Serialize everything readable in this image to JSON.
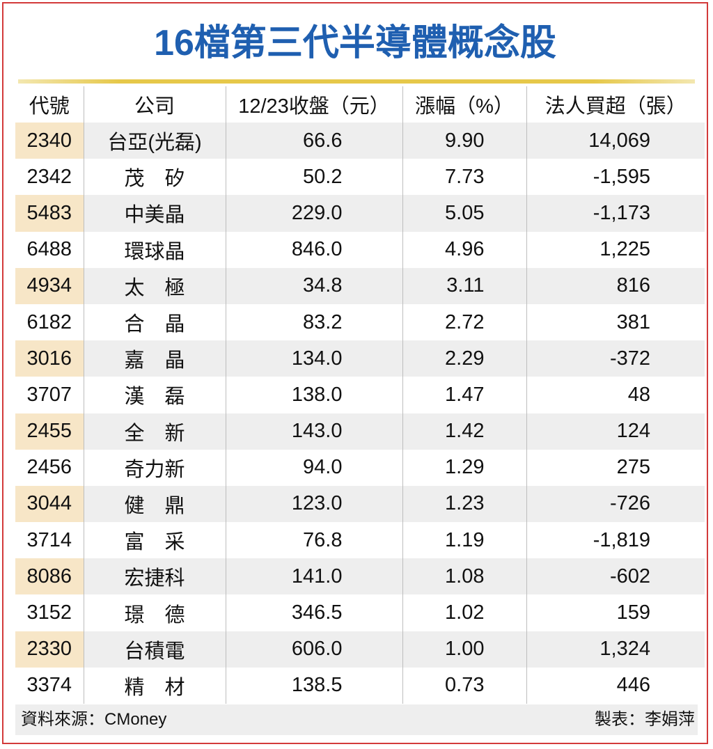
{
  "title": "16檔第三代半導體概念股",
  "headers": [
    "代號",
    "公司",
    "12/23收盤（元）",
    "漲幅（%）",
    "法人買超（張）"
  ],
  "rows": [
    {
      "code": "2340",
      "name": "台亞(光磊)",
      "close": "66.6",
      "change": "9.90",
      "net_buy": "14,069"
    },
    {
      "code": "2342",
      "name": "茂　矽",
      "close": "50.2",
      "change": "7.73",
      "net_buy": "-1,595"
    },
    {
      "code": "5483",
      "name": "中美晶",
      "close": "229.0",
      "change": "5.05",
      "net_buy": "-1,173"
    },
    {
      "code": "6488",
      "name": "環球晶",
      "close": "846.0",
      "change": "4.96",
      "net_buy": "1,225"
    },
    {
      "code": "4934",
      "name": "太　極",
      "close": "34.8",
      "change": "3.11",
      "net_buy": "816"
    },
    {
      "code": "6182",
      "name": "合　晶",
      "close": "83.2",
      "change": "2.72",
      "net_buy": "381"
    },
    {
      "code": "3016",
      "name": "嘉　晶",
      "close": "134.0",
      "change": "2.29",
      "net_buy": "-372"
    },
    {
      "code": "3707",
      "name": "漢　磊",
      "close": "138.0",
      "change": "1.47",
      "net_buy": "48"
    },
    {
      "code": "2455",
      "name": "全　新",
      "close": "143.0",
      "change": "1.42",
      "net_buy": "124"
    },
    {
      "code": "2456",
      "name": "奇力新",
      "close": "94.0",
      "change": "1.29",
      "net_buy": "275"
    },
    {
      "code": "3044",
      "name": "健　鼎",
      "close": "123.0",
      "change": "1.23",
      "net_buy": "-726"
    },
    {
      "code": "3714",
      "name": "富　采",
      "close": "76.8",
      "change": "1.19",
      "net_buy": "-1,819"
    },
    {
      "code": "8086",
      "name": "宏捷科",
      "close": "141.0",
      "change": "1.08",
      "net_buy": "-602"
    },
    {
      "code": "3152",
      "name": "璟　德",
      "close": "346.5",
      "change": "1.02",
      "net_buy": "159"
    },
    {
      "code": "2330",
      "name": "台積電",
      "close": "606.0",
      "change": "1.00",
      "net_buy": "1,324"
    },
    {
      "code": "3374",
      "name": "精　材",
      "close": "138.5",
      "change": "0.73",
      "net_buy": "446"
    }
  ],
  "footer": {
    "source": "資料來源：CMoney",
    "maker": "製表：李娟萍"
  },
  "colors": {
    "title": "#1f5fb0",
    "border": "#d33a3a",
    "rule": "#e6c84a",
    "row_shade": "#eeeeee",
    "code_shade": "#f7e6c7"
  }
}
